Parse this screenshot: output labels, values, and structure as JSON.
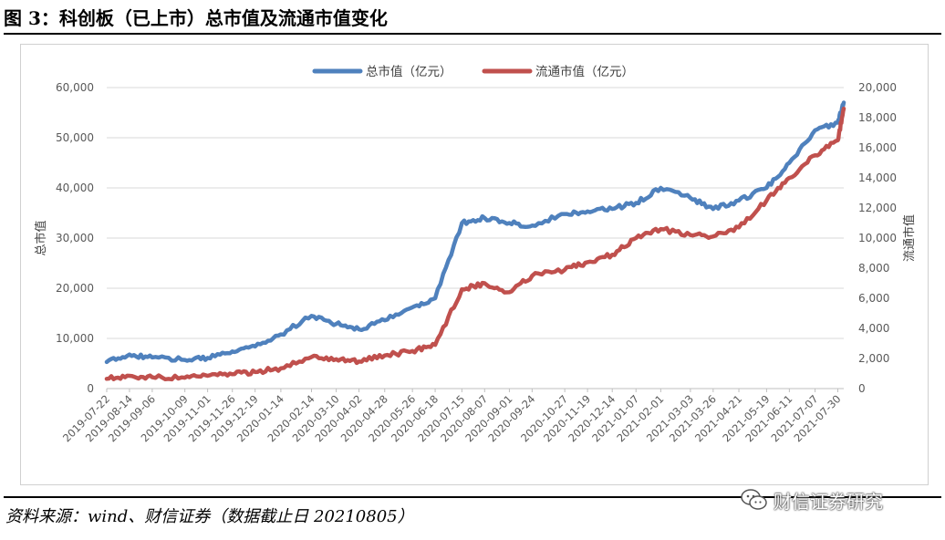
{
  "header": {
    "title": "图 3：科创板（已上市）总市值及流通市值变化"
  },
  "footer": {
    "source": "资料来源：wind、财信证券（数据截止日 20210805）",
    "watermark_text": "财信证券研究",
    "watermark_icon": "wechat-icon"
  },
  "colors": {
    "total": "#4F81BD",
    "float": "#C0504D",
    "grid": "#D9D9D9",
    "tick_text": "#595959"
  },
  "chart_data": {
    "type": "line",
    "legend_position": "top-center",
    "grid": true,
    "ylabel": "总市值",
    "y2label": "流通市值",
    "ylim": [
      0,
      60000
    ],
    "y2lim": [
      0,
      20000
    ],
    "y_ticks": [
      "0",
      "10,000",
      "20,000",
      "30,000",
      "40,000",
      "50,000",
      "60,000"
    ],
    "y2_ticks": [
      "0",
      "2,000",
      "4,000",
      "6,000",
      "8,000",
      "10,000",
      "12,000",
      "14,000",
      "16,000",
      "18,000",
      "20,000"
    ],
    "x_ticks": [
      "2019-07-22",
      "2019-08-14",
      "2019-09-06",
      "2019-10-09",
      "2019-11-01",
      "2019-11-26",
      "2019-12-19",
      "2020-01-14",
      "2020-02-14",
      "2020-03-10",
      "2020-04-02",
      "2020-04-28",
      "2020-05-26",
      "2020-06-18",
      "2020-07-15",
      "2020-08-07",
      "2020-09-01",
      "2020-09-24",
      "2020-10-27",
      "2020-11-19",
      "2020-12-14",
      "2021-01-07",
      "2021-02-01",
      "2021-03-03",
      "2021-03-26",
      "2021-04-21",
      "2021-05-19",
      "2021-06-11",
      "2021-07-07",
      "2021-07-30"
    ],
    "series": [
      {
        "name": "总市值（亿元）",
        "axis": "left",
        "x": [
          "2019-07-22",
          "2019-08-14",
          "2019-09-06",
          "2019-10-09",
          "2019-11-01",
          "2019-11-26",
          "2019-12-19",
          "2020-01-14",
          "2020-02-14",
          "2020-03-10",
          "2020-04-02",
          "2020-04-28",
          "2020-05-26",
          "2020-06-18",
          "2020-07-15",
          "2020-08-07",
          "2020-09-01",
          "2020-09-24",
          "2020-10-27",
          "2020-11-19",
          "2020-12-14",
          "2021-01-07",
          "2021-02-01",
          "2021-03-03",
          "2021-03-26",
          "2021-04-21",
          "2021-05-19",
          "2021-06-11",
          "2021-07-07",
          "2021-07-30",
          "2021-08-05"
        ],
        "values": [
          5300,
          6800,
          6200,
          5700,
          6100,
          7400,
          8400,
          10800,
          14500,
          12900,
          11800,
          13600,
          16200,
          18000,
          33000,
          34000,
          33000,
          32500,
          34800,
          35300,
          35800,
          37000,
          40000,
          38000,
          35800,
          37500,
          40000,
          45000,
          51500,
          53000,
          57000
        ]
      },
      {
        "name": "流通市值（亿元）",
        "axis": "right",
        "x": [
          "2019-07-22",
          "2019-08-14",
          "2019-09-06",
          "2019-10-09",
          "2019-11-01",
          "2019-11-26",
          "2019-12-19",
          "2020-01-14",
          "2020-02-14",
          "2020-03-10",
          "2020-04-02",
          "2020-04-28",
          "2020-05-26",
          "2020-06-18",
          "2020-07-15",
          "2020-08-07",
          "2020-09-01",
          "2020-09-24",
          "2020-10-27",
          "2020-11-19",
          "2020-12-14",
          "2021-01-07",
          "2021-02-01",
          "2021-03-03",
          "2021-03-26",
          "2021-04-21",
          "2021-05-19",
          "2021-06-11",
          "2021-07-07",
          "2021-07-30",
          "2021-08-05"
        ],
        "values": [
          650,
          850,
          750,
          720,
          850,
          950,
          1100,
          1350,
          2100,
          1950,
          1800,
          2200,
          2500,
          2900,
          6600,
          7000,
          6400,
          7500,
          7900,
          8400,
          8900,
          10000,
          10600,
          10200,
          10100,
          10700,
          12500,
          14000,
          15500,
          16500,
          18600
        ]
      }
    ]
  }
}
